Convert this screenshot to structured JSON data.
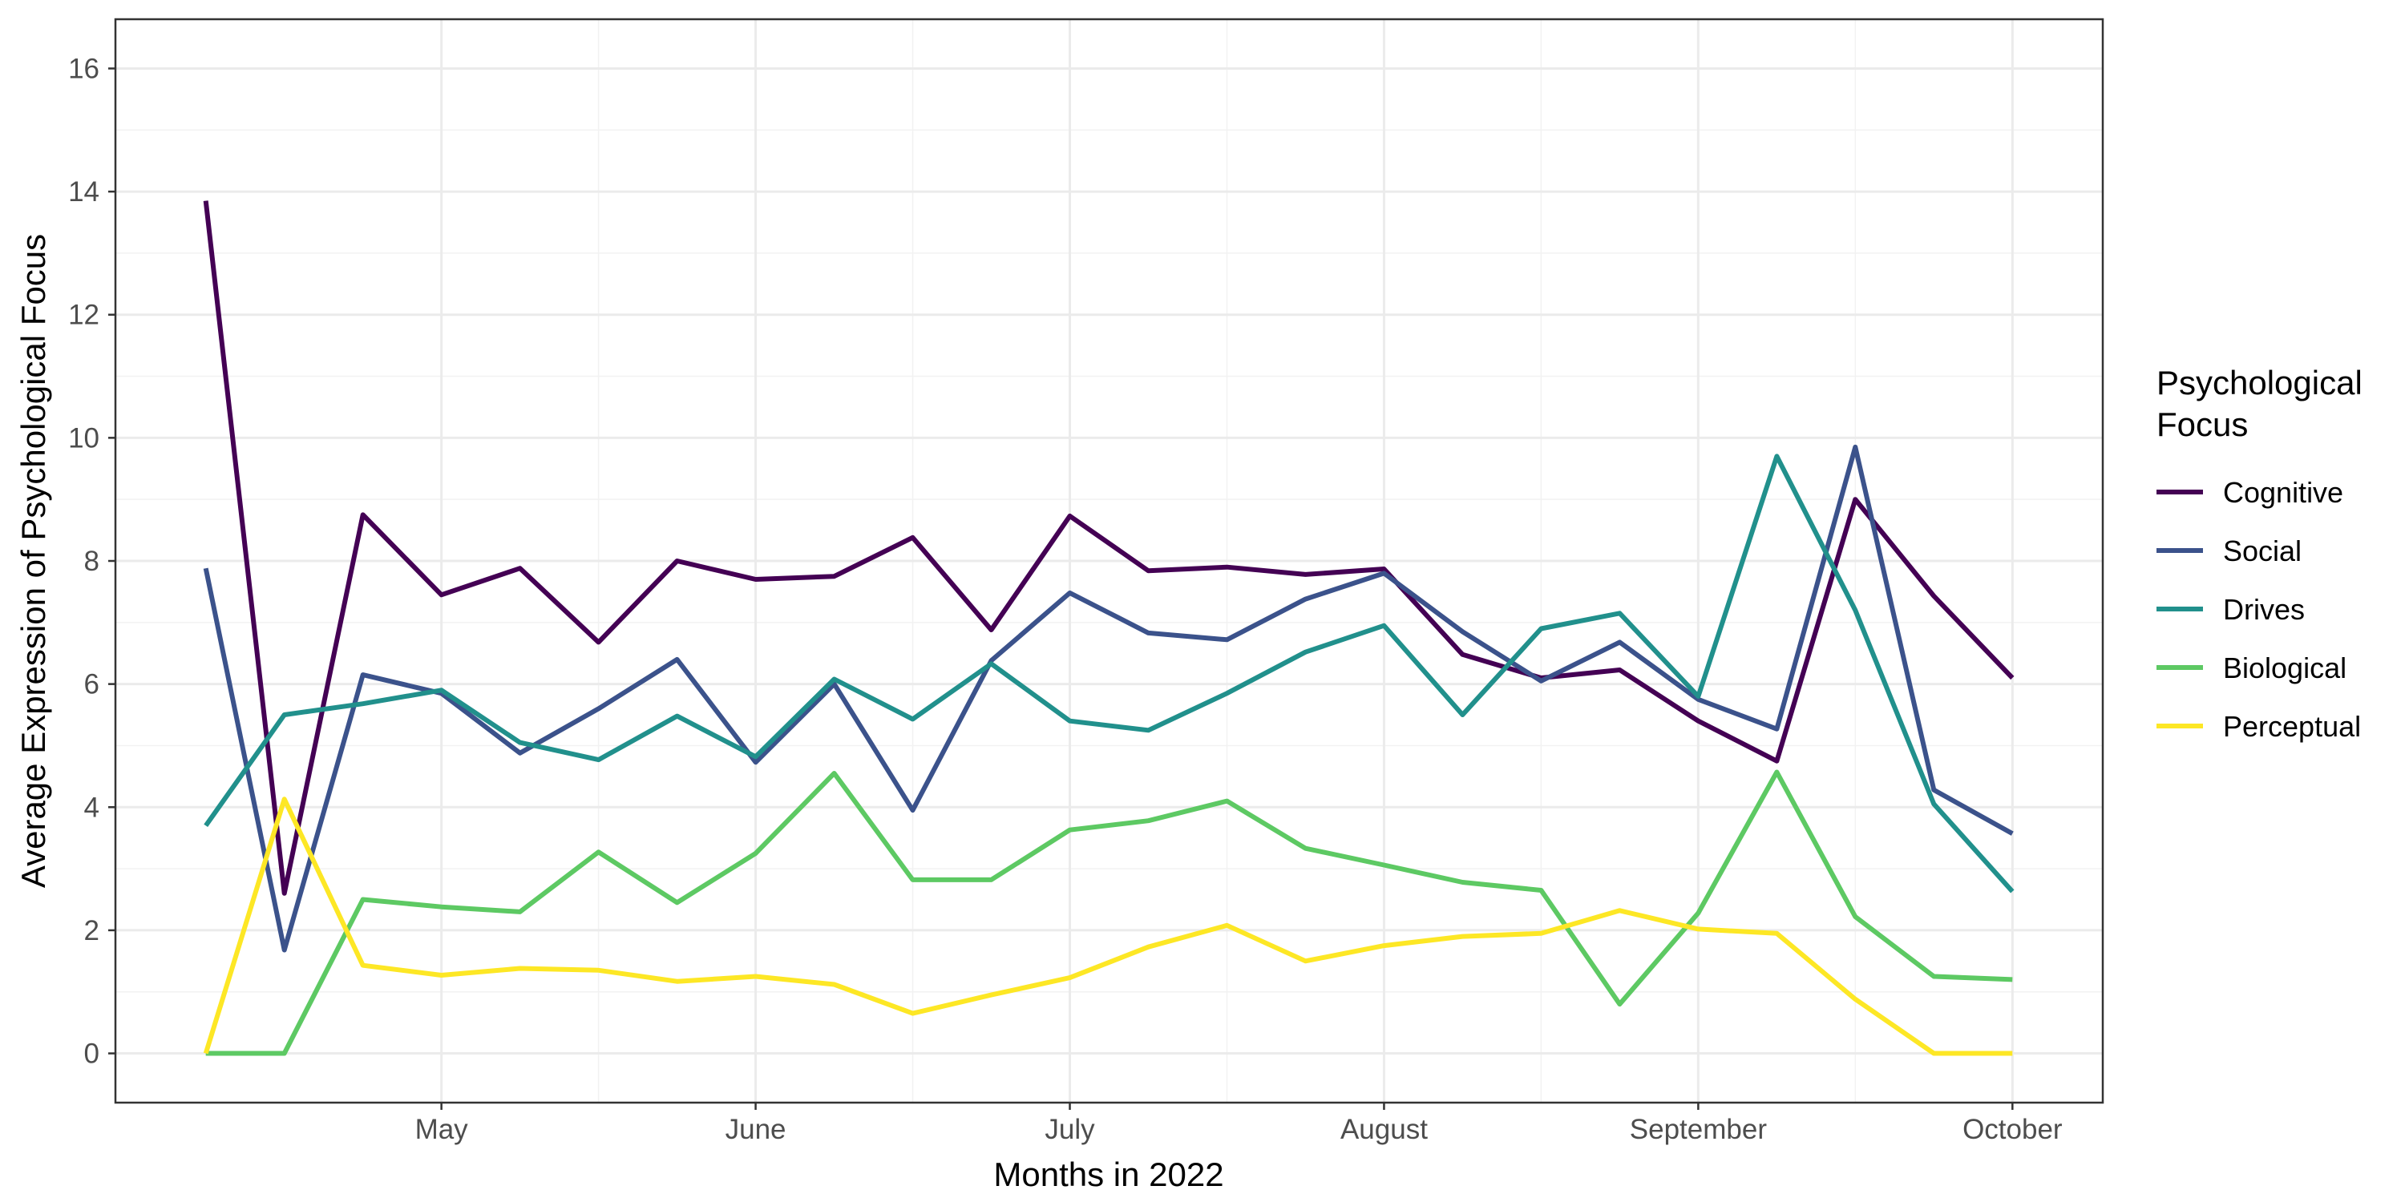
{
  "chart_data": {
    "type": "line",
    "xlabel": "Months in 2022",
    "ylabel": "Average Expression of Psychological Focus",
    "ylim": [
      -0.8,
      16.8
    ],
    "yticks": [
      0,
      2,
      4,
      6,
      8,
      10,
      12,
      14,
      16
    ],
    "x_tick_labels": [
      "May",
      "June",
      "July",
      "August",
      "September",
      "October"
    ],
    "x_tick_positions": [
      3,
      7,
      11,
      15,
      19,
      23
    ],
    "xlim": [
      -1.15,
      24.15
    ],
    "x": [
      0,
      1,
      2,
      3,
      4,
      5,
      6,
      7,
      8,
      9,
      10,
      11,
      12,
      13,
      14,
      15,
      16,
      17,
      18,
      19,
      20,
      21,
      22,
      23
    ],
    "legend": {
      "title": "Psychological\nFocus",
      "position": "right"
    },
    "series": [
      {
        "name": "Cognitive",
        "color": "#440154",
        "values": [
          13.85,
          2.6,
          8.75,
          7.45,
          7.88,
          6.68,
          8.0,
          7.7,
          7.75,
          8.38,
          6.88,
          8.73,
          7.84,
          7.9,
          7.78,
          7.87,
          6.48,
          6.1,
          6.23,
          5.4,
          4.75,
          9.0,
          7.43,
          6.1
        ]
      },
      {
        "name": "Social",
        "color": "#3b528b",
        "values": [
          7.88,
          1.68,
          6.15,
          5.85,
          4.88,
          5.6,
          6.4,
          4.73,
          6.0,
          3.95,
          6.38,
          7.48,
          6.83,
          6.72,
          7.38,
          7.8,
          6.85,
          6.05,
          6.68,
          5.75,
          5.27,
          9.85,
          4.28,
          3.57
        ]
      },
      {
        "name": "Drives",
        "color": "#21908c",
        "values": [
          3.7,
          5.5,
          5.68,
          5.9,
          5.05,
          4.77,
          5.48,
          4.82,
          6.08,
          5.43,
          6.33,
          5.4,
          5.25,
          5.85,
          6.52,
          6.95,
          5.5,
          6.9,
          7.15,
          5.8,
          9.7,
          7.2,
          4.05,
          2.63
        ]
      },
      {
        "name": "Biological",
        "color": "#5dc963",
        "values": [
          0.0,
          0.0,
          2.5,
          2.38,
          2.3,
          3.27,
          2.45,
          3.25,
          4.55,
          2.82,
          2.82,
          3.63,
          3.78,
          4.1,
          3.33,
          3.06,
          2.78,
          2.65,
          0.8,
          2.28,
          4.57,
          2.22,
          1.25,
          1.2
        ]
      },
      {
        "name": "Perceptual",
        "color": "#fde725",
        "values": [
          0.0,
          4.13,
          1.43,
          1.27,
          1.38,
          1.35,
          1.17,
          1.25,
          1.12,
          0.65,
          0.95,
          1.23,
          1.73,
          2.08,
          1.5,
          1.75,
          1.9,
          1.95,
          2.32,
          2.02,
          1.95,
          0.88,
          0.0,
          0.0
        ]
      }
    ]
  }
}
